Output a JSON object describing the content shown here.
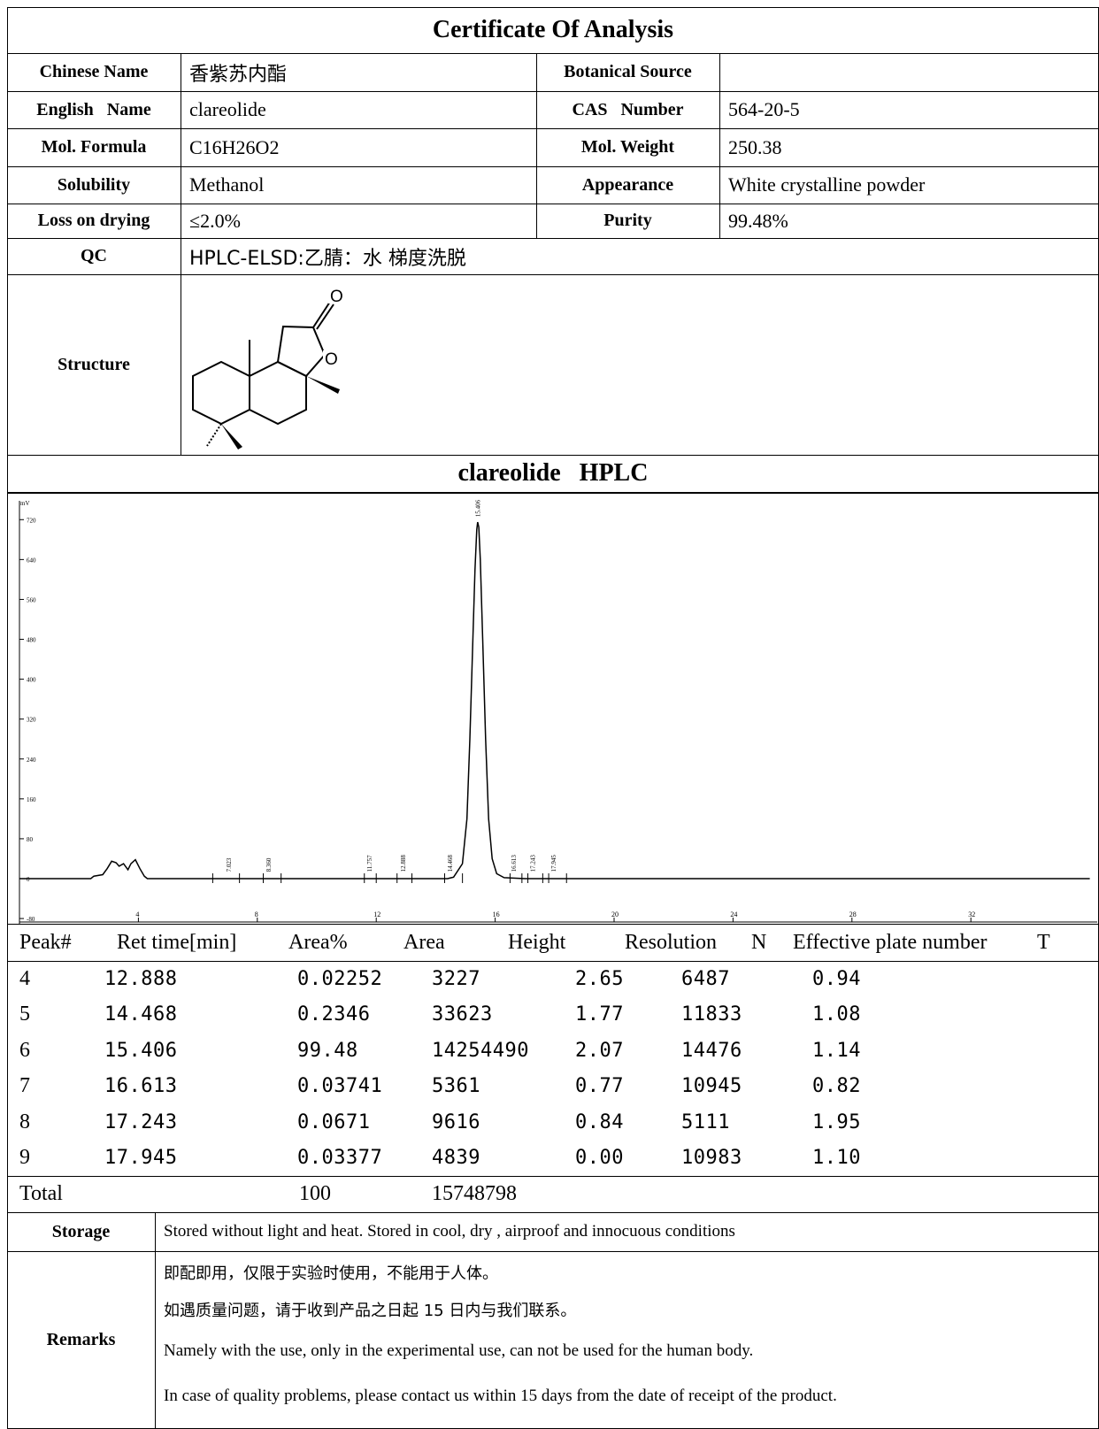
{
  "title": "Certificate Of Analysis",
  "info": {
    "chinese_name": {
      "label": "Chinese Name",
      "value": "香紫苏内酯"
    },
    "botanical_source": {
      "label": "Botanical Source",
      "value": ""
    },
    "english_name": {
      "label": "English   Name",
      "value": "clareolide"
    },
    "cas_number": {
      "label": "CAS   Number",
      "value": "564-20-5"
    },
    "mol_formula": {
      "label": "Mol. Formula",
      "value": "C16H26O2"
    },
    "mol_weight": {
      "label": "Mol. Weight",
      "value": "250.38"
    },
    "solubility": {
      "label": "Solubility",
      "value": "Methanol"
    },
    "appearance": {
      "label": "Appearance",
      "value": "White crystalline powder"
    },
    "loss_on_drying": {
      "label": "Loss on drying",
      "value": "≤2.0%"
    },
    "purity": {
      "label": "Purity",
      "value": "99.48%"
    },
    "qc": {
      "label": "QC",
      "value": "HPLC-ELSD:乙腈：水 梯度洗脱"
    },
    "structure": {
      "label": "Structure",
      "atom_label": "O"
    }
  },
  "hplc_title": "clareolide   HPLC",
  "chart_data": {
    "type": "line",
    "ylabel": "mV",
    "ylim": [
      -80,
      740
    ],
    "xlim": [
      0,
      36
    ],
    "y_ticks": [
      "720",
      "640",
      "560",
      "480",
      "400",
      "320",
      "240",
      "160",
      "80",
      "0",
      "-80"
    ],
    "x_ticks": [
      "4",
      "8",
      "12",
      "16",
      "20",
      "24",
      "28",
      "32"
    ],
    "peak_labels": [
      "7.023",
      "8.360",
      "11.757",
      "12.888",
      "14.468",
      "15.406",
      "16.613",
      "17.243",
      "17.945"
    ],
    "peak_label_x": [
      7.023,
      8.36,
      11.757,
      12.888,
      14.468,
      15.406,
      16.613,
      17.243,
      17.945
    ],
    "peak_label_y": [
      10,
      10,
      10,
      10,
      10,
      722,
      10,
      10,
      10
    ],
    "marker_x": [
      6.5,
      7.4,
      8.2,
      8.8,
      11.6,
      12.0,
      12.7,
      13.2,
      14.3,
      14.9,
      16.5,
      16.9,
      17.1,
      17.6,
      17.8,
      18.4
    ],
    "trace": {
      "x": [
        0,
        2.4,
        2.5,
        2.8,
        2.95,
        3.1,
        3.25,
        3.35,
        3.5,
        3.65,
        3.75,
        3.9,
        4.05,
        4.2,
        4.3,
        5.0,
        10.0,
        14.4,
        14.6,
        14.9,
        15.05,
        15.15,
        15.25,
        15.32,
        15.38,
        15.41,
        15.45,
        15.5,
        15.58,
        15.68,
        15.78,
        15.9,
        16.05,
        16.3,
        17.0,
        36.0
      ],
      "y": [
        0,
        0,
        5,
        8,
        20,
        35,
        32,
        25,
        30,
        18,
        30,
        38,
        20,
        5,
        0,
        0,
        0,
        0,
        3,
        30,
        120,
        280,
        480,
        620,
        700,
        715,
        705,
        640,
        480,
        280,
        120,
        40,
        10,
        2,
        0,
        0
      ]
    }
  },
  "peak_table": {
    "headers": [
      "Peak#",
      "Ret time[min]",
      "Area%",
      "Area",
      "Height",
      "Resolution",
      "N",
      "Effective plate number",
      "T"
    ],
    "rows": [
      [
        "4",
        "12.888",
        "0.02252",
        "3227",
        "2.65",
        "6487",
        "0.94"
      ],
      [
        "5",
        "14.468",
        "0.2346",
        "33623",
        "1.77",
        "11833",
        "1.08"
      ],
      [
        "6",
        "15.406",
        "99.48",
        "14254490",
        "2.07",
        "14476",
        "1.14"
      ],
      [
        "7",
        "16.613",
        "0.03741",
        "5361",
        "0.77",
        "10945",
        "0.82"
      ],
      [
        "8",
        "17.243",
        "0.0671",
        "9616",
        "0.84",
        "5111",
        "1.95"
      ],
      [
        "9",
        "17.945",
        "0.03377",
        "4839",
        "0.00",
        "10983",
        "1.10"
      ]
    ],
    "total": {
      "label": "Total",
      "area_pct": "100",
      "area": "15748798"
    }
  },
  "storage": {
    "label": "Storage",
    "value": "Stored without light and heat. Stored in cool, dry , airproof and innocuous conditions"
  },
  "remarks": {
    "label": "Remarks",
    "lines": [
      "即配即用，仅限于实验时使用，不能用于人体。",
      "如遇质量问题，请于收到产品之日起 15 日内与我们联系。",
      "Namely with the use, only in the experimental use, can not be used for the human body.",
      "In case of quality problems, please contact us within 15 days from the date of receipt of the product."
    ]
  }
}
